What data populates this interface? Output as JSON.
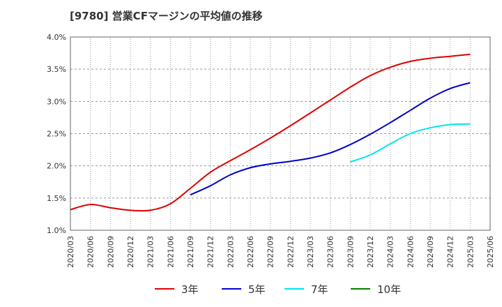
{
  "chart_data": {
    "type": "line",
    "title": "[9780]  営業CFマージンの平均値の推移",
    "xlabel": "",
    "ylabel": "",
    "ylim": [
      1.0,
      4.0
    ],
    "y_ticks": [
      "1.0%",
      "1.5%",
      "2.0%",
      "2.5%",
      "3.0%",
      "3.5%",
      "4.0%"
    ],
    "y_tick_values": [
      1.0,
      1.5,
      2.0,
      2.5,
      3.0,
      3.5,
      4.0
    ],
    "x_tick_labels": [
      "2020/03",
      "2020/06",
      "2020/09",
      "2020/12",
      "2021/03",
      "2021/06",
      "2021/09",
      "2021/12",
      "2022/03",
      "2022/06",
      "2022/09",
      "2022/12",
      "2023/03",
      "2023/06",
      "2023/09",
      "2023/12",
      "2024/03",
      "2024/06",
      "2024/09",
      "2024/12",
      "2025/03",
      "2025/06"
    ],
    "grid": true,
    "legend_position": "bottom",
    "series": [
      {
        "name": "3年",
        "color": "#dd0000",
        "x": [
          "2020/03",
          "2020/06",
          "2020/09",
          "2020/12",
          "2021/03",
          "2021/06",
          "2021/09",
          "2021/12",
          "2022/03",
          "2022/06",
          "2022/09",
          "2022/12",
          "2023/03",
          "2023/06",
          "2023/09",
          "2023/12",
          "2024/03",
          "2024/06",
          "2024/09",
          "2024/12",
          "2025/03"
        ],
        "values": [
          1.32,
          1.4,
          1.35,
          1.31,
          1.31,
          1.41,
          1.65,
          1.9,
          2.08,
          2.25,
          2.43,
          2.62,
          2.82,
          3.02,
          3.22,
          3.4,
          3.53,
          3.62,
          3.67,
          3.7,
          3.73
        ]
      },
      {
        "name": "5年",
        "color": "#0000cc",
        "x": [
          "2021/09",
          "2021/12",
          "2022/03",
          "2022/06",
          "2022/09",
          "2022/12",
          "2023/03",
          "2023/06",
          "2023/09",
          "2023/12",
          "2024/03",
          "2024/06",
          "2024/09",
          "2024/12",
          "2025/03"
        ],
        "values": [
          1.55,
          1.69,
          1.86,
          1.97,
          2.03,
          2.07,
          2.12,
          2.2,
          2.33,
          2.49,
          2.67,
          2.86,
          3.05,
          3.2,
          3.29
        ]
      },
      {
        "name": "7年",
        "color": "#00e5ee",
        "x": [
          "2023/09",
          "2023/12",
          "2024/03",
          "2024/06",
          "2024/09",
          "2024/12",
          "2025/03"
        ],
        "values": [
          2.06,
          2.17,
          2.34,
          2.5,
          2.59,
          2.64,
          2.65
        ]
      },
      {
        "name": "10年",
        "color": "#008000",
        "x": [],
        "values": []
      }
    ]
  }
}
